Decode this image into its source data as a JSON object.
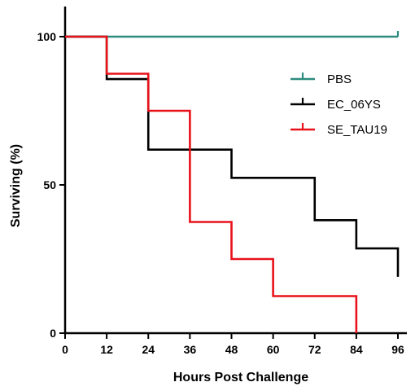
{
  "chart_data": {
    "type": "line",
    "step": true,
    "title": "",
    "xlabel": "Hours Post Challenge",
    "ylabel": "Surviving (%)",
    "xlim": [
      0,
      96
    ],
    "ylim": [
      0,
      100
    ],
    "x_ticks": [
      "0",
      "12",
      "24",
      "36",
      "48",
      "60",
      "72",
      "84",
      "96"
    ],
    "y_ticks": [
      "0",
      "50",
      "100"
    ],
    "grid": false,
    "legend_position": "right",
    "series": [
      {
        "name": "PBS",
        "color": "#2e8b7f",
        "points": [
          [
            0,
            100
          ],
          [
            96,
            100
          ]
        ],
        "censor_x": [
          96
        ]
      },
      {
        "name": "EC_06YS",
        "color": "#000000",
        "points": [
          [
            0,
            100
          ],
          [
            12,
            85.7
          ],
          [
            24,
            61.9
          ],
          [
            48,
            52.4
          ],
          [
            72,
            38.1
          ],
          [
            84,
            28.6
          ],
          [
            96,
            19
          ]
        ],
        "censor_x": []
      },
      {
        "name": "SE_TAU19",
        "color": "#e8121a",
        "points": [
          [
            0,
            100
          ],
          [
            12,
            87.5
          ],
          [
            24,
            75
          ],
          [
            36,
            37.5
          ],
          [
            48,
            25
          ],
          [
            60,
            12.5
          ],
          [
            84,
            0
          ]
        ],
        "censor_x": []
      }
    ]
  }
}
